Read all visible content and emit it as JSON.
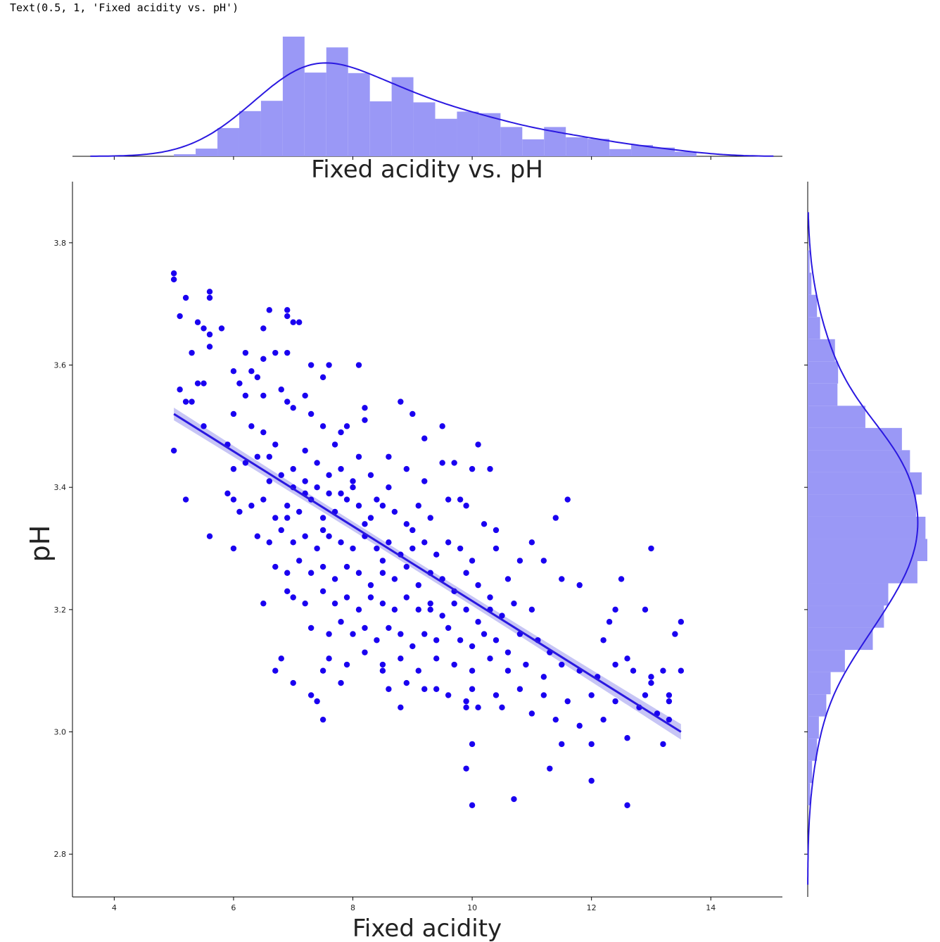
{
  "output_text": "Text(0.5, 1, 'Fixed acidity vs. pH')",
  "colors": {
    "points": "#1a00f0",
    "hist_fill": "#9a98f6",
    "line": "#2a18e0",
    "ci_band": "#b9b6f3",
    "axis": "#000000"
  },
  "chart_data": {
    "type": "scatter",
    "title": "Fixed acidity vs. pH",
    "xlabel": "Fixed acidity",
    "ylabel": "pH",
    "xlim": [
      3.3,
      15.2
    ],
    "ylim": [
      2.73,
      3.9
    ],
    "xticks": [
      4,
      6,
      8,
      10,
      12,
      14
    ],
    "yticks": [
      2.8,
      3.0,
      3.2,
      3.4,
      3.6,
      3.8
    ],
    "xtick_labels": [
      "4",
      "6",
      "8",
      "10",
      "12",
      "14"
    ],
    "ytick_labels": [
      "2.8",
      "3.0",
      "3.2",
      "3.4",
      "3.6",
      "3.8"
    ],
    "regression_line": {
      "x": [
        5.0,
        13.5
      ],
      "y": [
        3.52,
        3.0
      ]
    },
    "points": [
      [
        5.0,
        3.75
      ],
      [
        5.0,
        3.74
      ],
      [
        5.1,
        3.68
      ],
      [
        5.2,
        3.71
      ],
      [
        5.6,
        3.72
      ],
      [
        5.6,
        3.71
      ],
      [
        5.4,
        3.67
      ],
      [
        5.5,
        3.66
      ],
      [
        5.6,
        3.65
      ],
      [
        5.8,
        3.66
      ],
      [
        6.6,
        3.69
      ],
      [
        6.9,
        3.69
      ],
      [
        6.9,
        3.68
      ],
      [
        7.0,
        3.67
      ],
      [
        7.1,
        3.67
      ],
      [
        6.5,
        3.66
      ],
      [
        5.3,
        3.62
      ],
      [
        5.6,
        3.63
      ],
      [
        6.2,
        3.62
      ],
      [
        6.7,
        3.62
      ],
      [
        6.5,
        3.61
      ],
      [
        6.9,
        3.62
      ],
      [
        7.3,
        3.6
      ],
      [
        7.6,
        3.6
      ],
      [
        8.1,
        3.6
      ],
      [
        5.1,
        3.56
      ],
      [
        5.2,
        3.54
      ],
      [
        5.3,
        3.54
      ],
      [
        5.4,
        3.57
      ],
      [
        5.5,
        3.57
      ],
      [
        5.5,
        3.5
      ],
      [
        5.0,
        3.46
      ],
      [
        5.2,
        3.38
      ],
      [
        5.6,
        3.32
      ],
      [
        6.5,
        3.21
      ],
      [
        5.9,
        3.39
      ],
      [
        6.0,
        3.38
      ],
      [
        6.3,
        3.59
      ],
      [
        6.1,
        3.57
      ],
      [
        6.0,
        3.52
      ],
      [
        6.2,
        3.55
      ],
      [
        6.4,
        3.58
      ],
      [
        6.3,
        3.5
      ],
      [
        6.5,
        3.49
      ],
      [
        6.7,
        3.47
      ],
      [
        6.8,
        3.56
      ],
      [
        6.9,
        3.54
      ],
      [
        7.2,
        3.55
      ],
      [
        7.0,
        3.53
      ],
      [
        7.3,
        3.52
      ],
      [
        7.5,
        3.58
      ],
      [
        7.5,
        3.5
      ],
      [
        7.7,
        3.47
      ],
      [
        7.8,
        3.49
      ],
      [
        8.2,
        3.53
      ],
      [
        8.2,
        3.51
      ],
      [
        8.8,
        3.54
      ],
      [
        9.0,
        3.52
      ],
      [
        9.2,
        3.48
      ],
      [
        9.5,
        3.5
      ],
      [
        6.0,
        3.43
      ],
      [
        6.2,
        3.44
      ],
      [
        6.4,
        3.45
      ],
      [
        6.6,
        3.41
      ],
      [
        6.8,
        3.42
      ],
      [
        7.0,
        3.43
      ],
      [
        7.2,
        3.41
      ],
      [
        7.4,
        3.44
      ],
      [
        7.6,
        3.42
      ],
      [
        7.8,
        3.43
      ],
      [
        8.0,
        3.41
      ],
      [
        8.3,
        3.42
      ],
      [
        8.6,
        3.4
      ],
      [
        8.9,
        3.43
      ],
      [
        9.2,
        3.41
      ],
      [
        9.5,
        3.44
      ],
      [
        9.7,
        3.44
      ],
      [
        10.0,
        3.43
      ],
      [
        10.1,
        3.47
      ],
      [
        10.3,
        3.43
      ],
      [
        6.1,
        3.36
      ],
      [
        6.3,
        3.37
      ],
      [
        6.5,
        3.38
      ],
      [
        6.7,
        3.35
      ],
      [
        6.9,
        3.37
      ],
      [
        7.1,
        3.36
      ],
      [
        7.3,
        3.38
      ],
      [
        7.5,
        3.35
      ],
      [
        7.7,
        3.36
      ],
      [
        7.9,
        3.38
      ],
      [
        8.1,
        3.37
      ],
      [
        8.3,
        3.35
      ],
      [
        8.5,
        3.37
      ],
      [
        8.7,
        3.36
      ],
      [
        8.9,
        3.34
      ],
      [
        9.1,
        3.37
      ],
      [
        9.3,
        3.35
      ],
      [
        9.6,
        3.38
      ],
      [
        9.9,
        3.37
      ],
      [
        10.2,
        3.34
      ],
      [
        6.4,
        3.32
      ],
      [
        6.6,
        3.31
      ],
      [
        6.8,
        3.33
      ],
      [
        7.0,
        3.31
      ],
      [
        7.2,
        3.32
      ],
      [
        7.4,
        3.3
      ],
      [
        7.6,
        3.32
      ],
      [
        7.8,
        3.31
      ],
      [
        8.0,
        3.3
      ],
      [
        8.2,
        3.32
      ],
      [
        8.4,
        3.3
      ],
      [
        8.6,
        3.31
      ],
      [
        8.8,
        3.29
      ],
      [
        9.0,
        3.3
      ],
      [
        9.2,
        3.31
      ],
      [
        9.4,
        3.29
      ],
      [
        9.6,
        3.31
      ],
      [
        9.8,
        3.3
      ],
      [
        10.0,
        3.28
      ],
      [
        10.4,
        3.3
      ],
      [
        6.7,
        3.27
      ],
      [
        6.9,
        3.26
      ],
      [
        7.1,
        3.28
      ],
      [
        7.3,
        3.26
      ],
      [
        7.5,
        3.27
      ],
      [
        7.7,
        3.25
      ],
      [
        7.9,
        3.27
      ],
      [
        8.1,
        3.26
      ],
      [
        8.3,
        3.24
      ],
      [
        8.5,
        3.26
      ],
      [
        8.7,
        3.25
      ],
      [
        8.9,
        3.27
      ],
      [
        9.1,
        3.24
      ],
      [
        9.3,
        3.26
      ],
      [
        9.5,
        3.25
      ],
      [
        9.7,
        3.23
      ],
      [
        9.9,
        3.26
      ],
      [
        10.1,
        3.24
      ],
      [
        10.3,
        3.22
      ],
      [
        10.6,
        3.25
      ],
      [
        7.0,
        3.22
      ],
      [
        7.2,
        3.21
      ],
      [
        7.5,
        3.23
      ],
      [
        7.7,
        3.21
      ],
      [
        7.9,
        3.22
      ],
      [
        8.1,
        3.2
      ],
      [
        8.3,
        3.22
      ],
      [
        8.5,
        3.21
      ],
      [
        8.7,
        3.2
      ],
      [
        8.9,
        3.22
      ],
      [
        9.1,
        3.2
      ],
      [
        9.3,
        3.21
      ],
      [
        9.5,
        3.19
      ],
      [
        9.7,
        3.21
      ],
      [
        9.9,
        3.2
      ],
      [
        10.1,
        3.18
      ],
      [
        10.3,
        3.2
      ],
      [
        10.5,
        3.19
      ],
      [
        10.7,
        3.21
      ],
      [
        11.0,
        3.2
      ],
      [
        7.3,
        3.17
      ],
      [
        7.6,
        3.16
      ],
      [
        7.8,
        3.18
      ],
      [
        8.0,
        3.16
      ],
      [
        8.2,
        3.17
      ],
      [
        8.4,
        3.15
      ],
      [
        8.6,
        3.17
      ],
      [
        8.8,
        3.16
      ],
      [
        9.0,
        3.14
      ],
      [
        9.2,
        3.16
      ],
      [
        9.4,
        3.15
      ],
      [
        9.6,
        3.17
      ],
      [
        9.8,
        3.15
      ],
      [
        10.0,
        3.14
      ],
      [
        10.2,
        3.16
      ],
      [
        10.4,
        3.15
      ],
      [
        10.6,
        3.13
      ],
      [
        10.8,
        3.16
      ],
      [
        11.1,
        3.15
      ],
      [
        11.3,
        3.13
      ],
      [
        7.6,
        3.12
      ],
      [
        7.9,
        3.11
      ],
      [
        8.2,
        3.13
      ],
      [
        8.5,
        3.11
      ],
      [
        8.8,
        3.12
      ],
      [
        9.1,
        3.1
      ],
      [
        9.4,
        3.12
      ],
      [
        9.7,
        3.11
      ],
      [
        10.0,
        3.1
      ],
      [
        10.3,
        3.12
      ],
      [
        10.6,
        3.1
      ],
      [
        10.9,
        3.11
      ],
      [
        11.2,
        3.09
      ],
      [
        11.5,
        3.11
      ],
      [
        11.8,
        3.1
      ],
      [
        12.1,
        3.09
      ],
      [
        12.4,
        3.11
      ],
      [
        12.7,
        3.1
      ],
      [
        13.0,
        3.09
      ],
      [
        13.2,
        3.1
      ],
      [
        8.6,
        3.07
      ],
      [
        8.9,
        3.08
      ],
      [
        9.2,
        3.07
      ],
      [
        9.6,
        3.06
      ],
      [
        10.0,
        3.07
      ],
      [
        10.4,
        3.06
      ],
      [
        10.8,
        3.07
      ],
      [
        11.2,
        3.06
      ],
      [
        11.6,
        3.05
      ],
      [
        12.0,
        3.06
      ],
      [
        12.4,
        3.05
      ],
      [
        12.8,
        3.04
      ],
      [
        13.3,
        3.05
      ],
      [
        13.3,
        3.06
      ],
      [
        13.1,
        3.03
      ],
      [
        12.6,
        2.99
      ],
      [
        12.2,
        3.02
      ],
      [
        11.8,
        3.01
      ],
      [
        11.4,
        3.02
      ],
      [
        11.0,
        3.03
      ],
      [
        10.5,
        3.04
      ],
      [
        10.1,
        3.04
      ],
      [
        9.9,
        3.04
      ],
      [
        10.0,
        2.98
      ],
      [
        11.5,
        2.98
      ],
      [
        12.0,
        2.98
      ],
      [
        13.2,
        2.98
      ],
      [
        9.9,
        2.94
      ],
      [
        11.3,
        2.94
      ],
      [
        12.0,
        2.92
      ],
      [
        10.0,
        2.88
      ],
      [
        10.7,
        2.89
      ],
      [
        12.6,
        2.88
      ],
      [
        7.5,
        3.02
      ],
      [
        7.4,
        3.05
      ],
      [
        8.8,
        3.04
      ],
      [
        7.8,
        3.08
      ],
      [
        6.7,
        3.1
      ],
      [
        6.8,
        3.12
      ],
      [
        7.0,
        3.08
      ],
      [
        7.5,
        3.1
      ],
      [
        8.5,
        3.1
      ],
      [
        9.4,
        3.07
      ],
      [
        12.5,
        3.25
      ],
      [
        13.0,
        3.3
      ],
      [
        13.5,
        3.18
      ],
      [
        13.4,
        3.16
      ],
      [
        12.9,
        3.2
      ],
      [
        12.3,
        3.18
      ],
      [
        11.4,
        3.35
      ],
      [
        11.6,
        3.38
      ],
      [
        11.0,
        3.31
      ],
      [
        11.2,
        3.28
      ],
      [
        6.0,
        3.3
      ],
      [
        9.9,
        3.05
      ],
      [
        12.9,
        3.06
      ],
      [
        5.9,
        3.47
      ],
      [
        6.0,
        3.59
      ],
      [
        6.5,
        3.55
      ],
      [
        7.9,
        3.5
      ],
      [
        8.6,
        3.45
      ],
      [
        9.8,
        3.38
      ],
      [
        10.4,
        3.33
      ],
      [
        11.5,
        3.25
      ],
      [
        12.2,
        3.15
      ],
      [
        12.6,
        3.12
      ],
      [
        13.0,
        3.08
      ],
      [
        13.3,
        3.02
      ],
      [
        6.6,
        3.45
      ],
      [
        7.2,
        3.46
      ],
      [
        8.1,
        3.45
      ],
      [
        8.5,
        3.28
      ],
      [
        9.3,
        3.2
      ],
      [
        6.9,
        3.23
      ],
      [
        7.3,
        3.06
      ],
      [
        10.8,
        3.28
      ],
      [
        11.8,
        3.24
      ],
      [
        12.4,
        3.2
      ],
      [
        13.5,
        3.1
      ],
      [
        8.0,
        3.4
      ],
      [
        7.4,
        3.4
      ],
      [
        7.2,
        3.39
      ],
      [
        7.6,
        3.39
      ],
      [
        7.0,
        3.4
      ],
      [
        7.8,
        3.39
      ],
      [
        8.4,
        3.38
      ],
      [
        6.9,
        3.35
      ],
      [
        7.5,
        3.33
      ],
      [
        8.2,
        3.34
      ],
      [
        9.0,
        3.33
      ]
    ],
    "hist_x": {
      "bins_start": 5.0,
      "bin_width": 0.365,
      "counts": [
        4,
        15,
        55,
        88,
        108,
        233,
        163,
        212,
        162,
        107,
        154,
        105,
        73,
        87,
        84,
        57,
        33,
        57,
        37,
        34,
        14,
        22,
        17,
        9
      ]
    },
    "hist_y": {
      "bins_start": 2.88,
      "bin_width": 0.0363,
      "counts": [
        4,
        7,
        15,
        18,
        30,
        37,
        60,
        105,
        123,
        130,
        177,
        193,
        190,
        175,
        184,
        165,
        152,
        93,
        48,
        49,
        44,
        20,
        15,
        6,
        3
      ]
    }
  }
}
